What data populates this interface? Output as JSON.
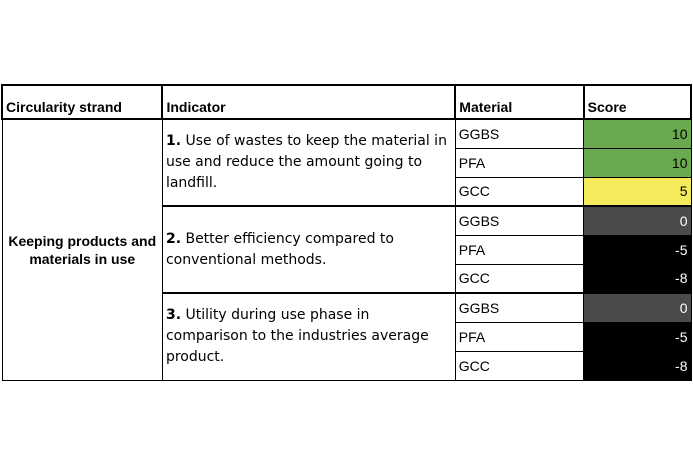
{
  "headers": {
    "strand": "Circularity strand",
    "indicator": "Indicator",
    "material": "Material",
    "score": "Score"
  },
  "strand": "Keeping products and materials in use",
  "groups": [
    {
      "num": "1.",
      "text": "Use of wastes to keep the material in use and reduce the amount going to landfill.",
      "rows": [
        {
          "material": "GGBS",
          "score": "10",
          "bg": "#6aaa4e",
          "fg": "#000000"
        },
        {
          "material": "PFA",
          "score": "10",
          "bg": "#6aaa4e",
          "fg": "#000000"
        },
        {
          "material": "GCC",
          "score": "5",
          "bg": "#f4ea5c",
          "fg": "#000000"
        }
      ]
    },
    {
      "num": "2.",
      "text": "Better efficiency compared to conventional methods.",
      "rows": [
        {
          "material": "GGBS",
          "score": "0",
          "bg": "#4a4a4a",
          "fg": "#ffffff"
        },
        {
          "material": "PFA",
          "score": "-5",
          "bg": "#000000",
          "fg": "#ffffff"
        },
        {
          "material": "GCC",
          "score": "-8",
          "bg": "#000000",
          "fg": "#ffffff"
        }
      ]
    },
    {
      "num": "3.",
      "text": "Utility during use phase in comparison to the industries average product.",
      "rows": [
        {
          "material": "GGBS",
          "score": "0",
          "bg": "#4a4a4a",
          "fg": "#ffffff"
        },
        {
          "material": "PFA",
          "score": "-5",
          "bg": "#000000",
          "fg": "#ffffff"
        },
        {
          "material": "GCC",
          "score": "-8",
          "bg": "#000000",
          "fg": "#ffffff"
        }
      ]
    }
  ]
}
